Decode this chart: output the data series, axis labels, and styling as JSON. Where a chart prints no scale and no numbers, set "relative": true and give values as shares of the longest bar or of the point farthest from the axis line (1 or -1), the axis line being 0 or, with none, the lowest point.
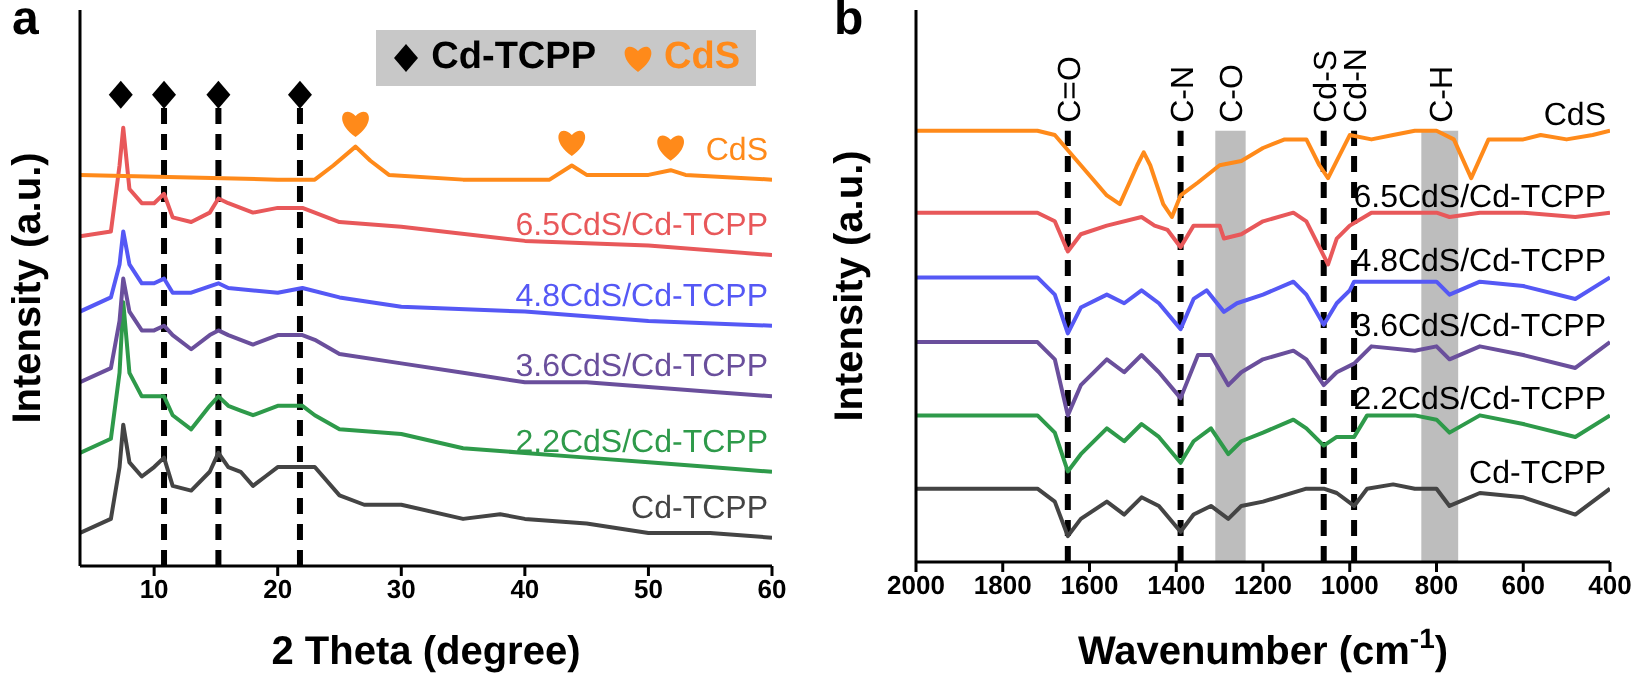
{
  "chart_data": [
    {
      "type": "line",
      "title": "a",
      "xlabel": "2 Theta (degree)",
      "ylabel": "Intensity (a.u.)",
      "relative": true,
      "xlim": [
        4,
        60
      ],
      "xticks": [
        10,
        20,
        30,
        40,
        50,
        60
      ],
      "grid": false,
      "legend": "top right",
      "line_style": "solid",
      "ref_lines": [
        {
          "axis": "x",
          "value": 10.8,
          "color": "#000000",
          "line_style": "dashed"
        },
        {
          "axis": "x",
          "value": 15.2,
          "color": "#000000",
          "line_style": "dashed"
        },
        {
          "axis": "x",
          "value": 21.8,
          "color": "#000000",
          "line_style": "dashed"
        }
      ],
      "series": [
        {
          "name": "Cd-TCPP",
          "color": "#444444",
          "x": [
            4,
            6.5,
            7.2,
            7.5,
            8,
            9,
            10,
            10.8,
            11.5,
            13,
            14.5,
            15.2,
            16,
            17,
            18,
            19,
            20,
            22,
            23,
            25,
            27,
            30,
            35,
            38,
            40,
            45,
            50,
            55,
            60
          ],
          "values": [
            0.07,
            0.1,
            0.21,
            0.3,
            0.22,
            0.19,
            0.21,
            0.23,
            0.17,
            0.16,
            0.2,
            0.24,
            0.21,
            0.2,
            0.17,
            0.19,
            0.21,
            0.21,
            0.21,
            0.15,
            0.13,
            0.13,
            0.1,
            0.11,
            0.1,
            0.09,
            0.07,
            0.07,
            0.06
          ]
        },
        {
          "name": "2.2CdS/Cd-TCPP",
          "color": "#2e9a4a",
          "x": [
            4,
            6.5,
            7.2,
            7.5,
            8,
            9,
            10,
            10.8,
            11.5,
            13,
            14.5,
            15.2,
            16,
            17,
            18,
            20,
            22,
            23,
            25,
            30,
            35,
            40,
            45,
            50,
            55,
            60
          ],
          "values": [
            0.24,
            0.27,
            0.41,
            0.56,
            0.41,
            0.36,
            0.36,
            0.36,
            0.32,
            0.29,
            0.34,
            0.36,
            0.34,
            0.33,
            0.32,
            0.34,
            0.34,
            0.32,
            0.29,
            0.28,
            0.25,
            0.24,
            0.23,
            0.22,
            0.21,
            0.2
          ]
        },
        {
          "name": "3.6CdS/Cd-TCPP",
          "color": "#6a4f9c",
          "x": [
            4,
            6.5,
            7.2,
            7.5,
            8,
            9,
            10,
            10.8,
            11.5,
            13,
            14.5,
            15.2,
            16,
            18,
            20,
            22,
            23,
            25,
            30,
            35,
            40,
            45,
            50,
            55,
            60
          ],
          "values": [
            0.39,
            0.42,
            0.52,
            0.61,
            0.54,
            0.5,
            0.5,
            0.51,
            0.49,
            0.46,
            0.49,
            0.5,
            0.49,
            0.47,
            0.49,
            0.49,
            0.48,
            0.45,
            0.43,
            0.41,
            0.39,
            0.39,
            0.38,
            0.37,
            0.36
          ]
        },
        {
          "name": "4.8CdS/Cd-TCPP",
          "color": "#5558f5",
          "x": [
            4,
            6.5,
            7.2,
            7.5,
            8,
            9,
            10,
            10.8,
            11.5,
            13,
            15.2,
            16,
            20,
            22,
            25,
            30,
            40,
            50,
            60
          ],
          "values": [
            0.54,
            0.57,
            0.64,
            0.71,
            0.64,
            0.6,
            0.6,
            0.61,
            0.58,
            0.58,
            0.6,
            0.59,
            0.58,
            0.59,
            0.57,
            0.55,
            0.54,
            0.52,
            0.51
          ]
        },
        {
          "name": "6.5CdS/Cd-TCPP",
          "color": "#e8585a",
          "x": [
            4,
            6.5,
            7.2,
            7.5,
            8,
            9,
            10,
            10.8,
            11.5,
            13,
            14.5,
            15.2,
            16,
            18,
            20,
            22,
            23,
            25,
            30,
            40,
            50,
            60
          ],
          "values": [
            0.7,
            0.71,
            0.85,
            0.93,
            0.8,
            0.77,
            0.77,
            0.79,
            0.74,
            0.73,
            0.75,
            0.78,
            0.77,
            0.75,
            0.76,
            0.76,
            0.75,
            0.73,
            0.72,
            0.69,
            0.68,
            0.66
          ]
        },
        {
          "name": "CdS",
          "color": "#ff8a1a",
          "x": [
            4,
            20,
            23,
            24.5,
            26.3,
            27.5,
            29,
            35,
            42,
            43.8,
            45,
            50,
            51.8,
            53,
            60
          ],
          "values": [
            0.83,
            0.82,
            0.82,
            0.85,
            0.89,
            0.86,
            0.83,
            0.82,
            0.82,
            0.85,
            0.83,
            0.83,
            0.84,
            0.83,
            0.82
          ]
        },
        {
          "name": "Cd-TCPP",
          "type": "scatter",
          "marker": "diamond",
          "color": "#000000",
          "x": [
            7.3,
            10.8,
            15.2,
            21.8
          ],
          "values": [
            1,
            1,
            1,
            1
          ]
        },
        {
          "name": "CdS",
          "type": "scatter",
          "color": "#ff8a1a",
          "x": [
            26.3,
            43.8,
            51.8
          ],
          "values": [
            0.94,
            0.9,
            0.89
          ]
        }
      ]
    },
    {
      "type": "line",
      "title": "b",
      "xlabel": "Wavenumber (cm$^{-1}$)",
      "ylabel": "Intensity (a.u.)",
      "relative": true,
      "xlim": [
        2000,
        400
      ],
      "xticks": [
        2000,
        1800,
        1600,
        1400,
        1200,
        1000,
        800,
        600,
        400
      ],
      "grid": false,
      "line_style": "solid",
      "ref_lines": [
        {
          "axis": "x",
          "value": 1650,
          "label": "C=O",
          "color": "#000000",
          "line_style": "dashed"
        },
        {
          "axis": "x",
          "value": 1390,
          "label": "C-N",
          "color": "#000000",
          "line_style": "dashed"
        },
        {
          "axis": "x",
          "value": 1060,
          "label": "Cd-S",
          "color": "#000000",
          "line_style": "dashed"
        },
        {
          "axis": "x",
          "value": 990,
          "label": "Cd-N",
          "color": "#000000",
          "line_style": "dashed"
        }
      ],
      "bands": [
        {
          "axis": "x",
          "from": 1310,
          "to": 1240,
          "label": "C-O",
          "color": "#bdbdbd"
        },
        {
          "axis": "x",
          "from": 835,
          "to": 750,
          "label": "C-H",
          "color": "#bdbdbd"
        }
      ],
      "series": [
        {
          "name": "Cd-TCPP",
          "color": "#444444",
          "x": [
            2000,
            1720,
            1680,
            1650,
            1620,
            1560,
            1520,
            1480,
            1440,
            1390,
            1360,
            1320,
            1280,
            1250,
            1200,
            1100,
            1060,
            1030,
            990,
            960,
            900,
            850,
            800,
            770,
            700,
            600,
            480,
            400
          ],
          "values": [
            0.17,
            0.17,
            0.14,
            0.06,
            0.1,
            0.14,
            0.11,
            0.15,
            0.13,
            0.07,
            0.11,
            0.13,
            0.1,
            0.13,
            0.14,
            0.17,
            0.17,
            0.16,
            0.13,
            0.17,
            0.18,
            0.17,
            0.17,
            0.13,
            0.16,
            0.15,
            0.11,
            0.17
          ]
        },
        {
          "name": "2.2CdS/Cd-TCPP",
          "color": "#2e9a4a",
          "x": [
            2000,
            1720,
            1680,
            1650,
            1620,
            1560,
            1520,
            1480,
            1440,
            1390,
            1360,
            1320,
            1280,
            1250,
            1200,
            1130,
            1100,
            1060,
            1030,
            990,
            960,
            850,
            800,
            770,
            700,
            600,
            480,
            400
          ],
          "values": [
            0.34,
            0.34,
            0.3,
            0.21,
            0.25,
            0.31,
            0.28,
            0.32,
            0.29,
            0.23,
            0.28,
            0.31,
            0.25,
            0.28,
            0.3,
            0.33,
            0.31,
            0.27,
            0.29,
            0.29,
            0.34,
            0.34,
            0.33,
            0.3,
            0.34,
            0.32,
            0.29,
            0.34
          ]
        },
        {
          "name": "3.6CdS/Cd-TCPP",
          "color": "#6a4f9c",
          "x": [
            2000,
            1720,
            1680,
            1650,
            1620,
            1560,
            1520,
            1480,
            1440,
            1390,
            1350,
            1320,
            1280,
            1250,
            1200,
            1130,
            1100,
            1060,
            1030,
            990,
            950,
            850,
            800,
            770,
            700,
            600,
            480,
            400
          ],
          "values": [
            0.51,
            0.51,
            0.47,
            0.34,
            0.41,
            0.47,
            0.44,
            0.48,
            0.44,
            0.38,
            0.48,
            0.48,
            0.41,
            0.44,
            0.47,
            0.49,
            0.47,
            0.41,
            0.44,
            0.46,
            0.5,
            0.49,
            0.5,
            0.47,
            0.5,
            0.48,
            0.45,
            0.51
          ]
        },
        {
          "name": "4.8CdS/Cd-TCPP",
          "color": "#5558f5",
          "x": [
            2000,
            1720,
            1680,
            1650,
            1620,
            1560,
            1520,
            1480,
            1440,
            1390,
            1360,
            1330,
            1290,
            1260,
            1200,
            1130,
            1100,
            1060,
            1030,
            1000,
            990,
            950,
            850,
            800,
            770,
            700,
            600,
            480,
            400
          ],
          "values": [
            0.66,
            0.66,
            0.62,
            0.53,
            0.59,
            0.62,
            0.6,
            0.63,
            0.6,
            0.54,
            0.61,
            0.63,
            0.58,
            0.6,
            0.62,
            0.65,
            0.62,
            0.55,
            0.6,
            0.63,
            0.65,
            0.65,
            0.65,
            0.65,
            0.62,
            0.65,
            0.64,
            0.61,
            0.66
          ]
        },
        {
          "name": "6.5CdS/Cd-TCPP",
          "color": "#e8585a",
          "x": [
            2000,
            1720,
            1680,
            1650,
            1620,
            1560,
            1480,
            1450,
            1420,
            1390,
            1360,
            1300,
            1290,
            1250,
            1200,
            1130,
            1100,
            1070,
            1050,
            1030,
            1000,
            950,
            850,
            800,
            770,
            700,
            600,
            480,
            400
          ],
          "values": [
            0.81,
            0.81,
            0.79,
            0.72,
            0.76,
            0.78,
            0.8,
            0.78,
            0.77,
            0.73,
            0.78,
            0.78,
            0.75,
            0.76,
            0.79,
            0.81,
            0.79,
            0.73,
            0.69,
            0.75,
            0.78,
            0.81,
            0.81,
            0.81,
            0.8,
            0.81,
            0.81,
            0.8,
            0.81
          ]
        },
        {
          "name": "CdS",
          "color": "#ff8a1a",
          "x": [
            2000,
            1720,
            1680,
            1620,
            1560,
            1530,
            1490,
            1475,
            1460,
            1430,
            1410,
            1390,
            1350,
            1300,
            1250,
            1200,
            1150,
            1100,
            1070,
            1050,
            1030,
            1000,
            950,
            900,
            850,
            800,
            760,
            720,
            680,
            600,
            560,
            500,
            440,
            400
          ],
          "values": [
            1,
            1,
            0.99,
            0.92,
            0.85,
            0.83,
            0.92,
            0.95,
            0.92,
            0.83,
            0.8,
            0.85,
            0.88,
            0.92,
            0.93,
            0.96,
            0.98,
            0.98,
            0.92,
            0.89,
            0.93,
            0.99,
            0.98,
            0.99,
            1,
            1,
            0.98,
            0.89,
            0.98,
            0.98,
            0.99,
            0.98,
            0.99,
            1
          ]
        }
      ]
    }
  ]
}
